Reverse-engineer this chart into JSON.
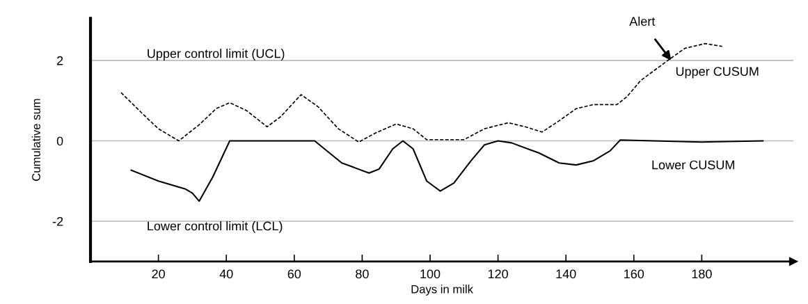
{
  "chart_data": {
    "type": "line",
    "xlabel": "Days in milk",
    "ylabel": "Cumulative sum",
    "xlim": [
      0,
      207
    ],
    "ylim": [
      -3,
      3.05
    ],
    "xticks": [
      20,
      40,
      60,
      80,
      100,
      120,
      140,
      160,
      180
    ],
    "yticks": [
      -2,
      0,
      2
    ],
    "grid": false,
    "marker": "none",
    "series": [
      {
        "name": "Upper CUSUM",
        "color": "#000000",
        "line_style": "dashed",
        "x": [
          9,
          15,
          20,
          26,
          32,
          37,
          41,
          46,
          52,
          56,
          62,
          67,
          73,
          79,
          84,
          90,
          95,
          99,
          110,
          116,
          123,
          128,
          133,
          138,
          143,
          148,
          155,
          158,
          162,
          170,
          175,
          181,
          186
        ],
        "values": [
          1.2,
          0.7,
          0.3,
          0.0,
          0.4,
          0.8,
          0.95,
          0.75,
          0.35,
          0.6,
          1.15,
          0.85,
          0.3,
          -0.03,
          0.2,
          0.42,
          0.3,
          0.03,
          0.03,
          0.3,
          0.45,
          0.35,
          0.22,
          0.5,
          0.8,
          0.9,
          0.9,
          1.1,
          1.5,
          2.0,
          2.3,
          2.42,
          2.35
        ]
      },
      {
        "name": "Lower CUSUM",
        "color": "#000000",
        "line_style": "solid",
        "x": [
          12,
          20,
          28,
          30,
          32,
          36,
          41,
          66,
          74,
          82,
          85,
          89,
          92,
          95,
          99,
          103,
          107,
          112,
          116,
          120,
          124,
          132,
          138,
          143,
          148,
          153,
          156,
          180,
          198
        ],
        "values": [
          -0.73,
          -1.0,
          -1.2,
          -1.3,
          -1.5,
          -0.9,
          0.0,
          0.0,
          -0.55,
          -0.8,
          -0.7,
          -0.2,
          0.0,
          -0.2,
          -1.0,
          -1.25,
          -1.05,
          -0.5,
          -0.1,
          0.0,
          -0.05,
          -0.3,
          -0.55,
          -0.6,
          -0.5,
          -0.25,
          0.02,
          -0.03,
          0.0
        ]
      }
    ],
    "ref_lines": [
      {
        "axis": "y",
        "value": 2,
        "label": "Upper control limit (UCL)",
        "color": "#bbbbbb"
      },
      {
        "axis": "y",
        "value": 0,
        "color": "#bbbbbb"
      },
      {
        "axis": "y",
        "value": -2,
        "label": "Lower control limit (LCL)",
        "color": "#bbbbbb"
      }
    ],
    "annotations": [
      {
        "text": "Alert",
        "x": 171,
        "y": 2.0
      }
    ]
  }
}
